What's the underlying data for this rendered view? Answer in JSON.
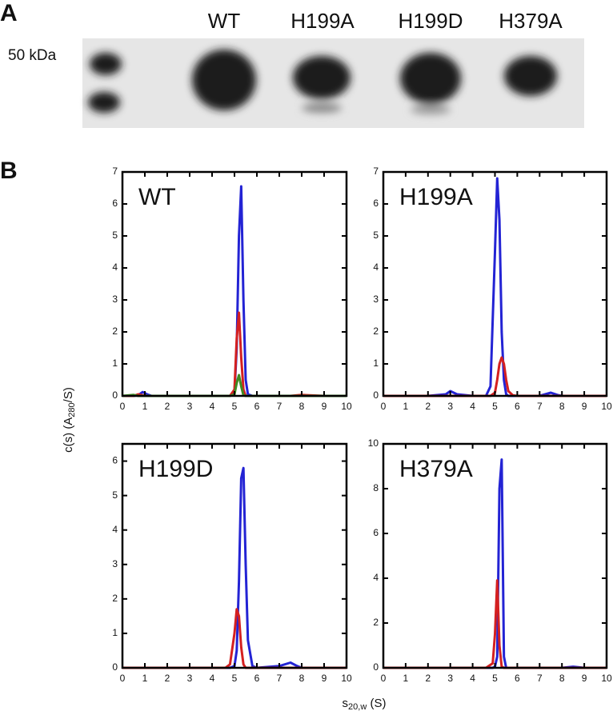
{
  "panels": {
    "a": "A",
    "b": "B"
  },
  "gel": {
    "marker_label": "50 kDa",
    "lanes": [
      "WT",
      "H199A",
      "H199D",
      "H379A"
    ]
  },
  "axis_labels": {
    "y": [
      "c(s)  (A",
      "280",
      "/S)"
    ],
    "x": [
      "s",
      "20,w",
      " (S)"
    ]
  },
  "chart_data": [
    {
      "type": "line",
      "title": "WT",
      "x": [
        0,
        0.5,
        0.7,
        0.9,
        1.1,
        1.3,
        2,
        3,
        4,
        4.6,
        4.8,
        5.0,
        5.1,
        5.2,
        5.3,
        5.4,
        5.5,
        5.6,
        5.8,
        6,
        7,
        7.5,
        8,
        9,
        10
      ],
      "xlim": [
        0,
        10
      ],
      "xticks": [
        0,
        1,
        2,
        3,
        4,
        5,
        6,
        7,
        8,
        9,
        10
      ],
      "ylim": [
        0,
        7
      ],
      "yticks": [
        0,
        1,
        2,
        3,
        4,
        5,
        6,
        7
      ],
      "series": [
        {
          "color": "#2323d4",
          "values": [
            0,
            0,
            0.02,
            0.12,
            0.05,
            0,
            0,
            0,
            0,
            0,
            0,
            0.1,
            1.5,
            5.0,
            6.55,
            3.0,
            0.5,
            0.05,
            0,
            0,
            0,
            0,
            0,
            0,
            0
          ]
        },
        {
          "color": "#d42020",
          "values": [
            0,
            0,
            0.05,
            0.02,
            0,
            0,
            0,
            0,
            0,
            0,
            0,
            0.2,
            1.8,
            2.6,
            1.2,
            0.2,
            0,
            0,
            0,
            0,
            0,
            0,
            0.03,
            0,
            0
          ]
        },
        {
          "color": "#3f8a22",
          "values": [
            0,
            0.03,
            0,
            0,
            0,
            0,
            0,
            0,
            0,
            0,
            0,
            0.05,
            0.4,
            0.65,
            0.3,
            0.02,
            0,
            0,
            0,
            0,
            0,
            0,
            0,
            0,
            0
          ]
        }
      ]
    },
    {
      "type": "line",
      "title": "H199A",
      "x": [
        0,
        1,
        2,
        2.8,
        3.0,
        3.3,
        4,
        4.6,
        4.8,
        5.0,
        5.1,
        5.2,
        5.3,
        5.4,
        5.5,
        5.6,
        5.8,
        6,
        7,
        7.5,
        7.8,
        8,
        9,
        10
      ],
      "xlim": [
        0,
        10
      ],
      "xticks": [
        0,
        1,
        2,
        3,
        4,
        5,
        6,
        7,
        8,
        9,
        10
      ],
      "ylim": [
        0,
        7
      ],
      "yticks": [
        0,
        1,
        2,
        3,
        4,
        5,
        6,
        7
      ],
      "series": [
        {
          "color": "#2323d4",
          "values": [
            0,
            0,
            0,
            0.05,
            0.15,
            0.05,
            0,
            0,
            0.3,
            4.5,
            6.8,
            5.5,
            2.0,
            0.5,
            0.05,
            0,
            0,
            0,
            0,
            0.1,
            0.03,
            0,
            0,
            0
          ]
        },
        {
          "color": "#d42020",
          "values": [
            0,
            0,
            0,
            0,
            0,
            0,
            0,
            0,
            0,
            0.1,
            0.5,
            1.0,
            1.2,
            1.0,
            0.5,
            0.15,
            0.02,
            0,
            0,
            0,
            0,
            0,
            0,
            0
          ]
        }
      ]
    },
    {
      "type": "line",
      "title": "H199D",
      "x": [
        0,
        1,
        2,
        3,
        4,
        4.6,
        4.8,
        5.0,
        5.1,
        5.2,
        5.3,
        5.4,
        5.5,
        5.6,
        5.8,
        6,
        7,
        7.5,
        7.8,
        8,
        9,
        10
      ],
      "xlim": [
        0,
        10
      ],
      "xticks": [
        0,
        1,
        2,
        3,
        4,
        5,
        6,
        7,
        8,
        9,
        10
      ],
      "ylim": [
        0,
        6.5
      ],
      "yticks": [
        0,
        1,
        2,
        3,
        4,
        5,
        6
      ],
      "series": [
        {
          "color": "#2323d4",
          "values": [
            0,
            0,
            0,
            0,
            0,
            0,
            0,
            0.05,
            0.5,
            2.5,
            5.5,
            5.8,
            3.0,
            0.8,
            0.05,
            0,
            0.05,
            0.15,
            0.05,
            0,
            0,
            0
          ]
        },
        {
          "color": "#d42020",
          "values": [
            0,
            0,
            0,
            0,
            0,
            0,
            0.1,
            1.0,
            1.7,
            1.5,
            0.6,
            0.1,
            0,
            0,
            0,
            0,
            0,
            0,
            0,
            0,
            0,
            0
          ]
        }
      ]
    },
    {
      "type": "line",
      "title": "H379A",
      "x": [
        0,
        1,
        2,
        3,
        4,
        4.6,
        4.9,
        5.0,
        5.1,
        5.2,
        5.3,
        5.4,
        5.5,
        6,
        7,
        8,
        8.5,
        9,
        10
      ],
      "xlim": [
        0,
        10
      ],
      "xticks": [
        0,
        1,
        2,
        3,
        4,
        5,
        6,
        7,
        8,
        9,
        10
      ],
      "ylim": [
        0,
        10
      ],
      "yticks": [
        0,
        2,
        4,
        6,
        8,
        10
      ],
      "series": [
        {
          "color": "#2323d4",
          "values": [
            0,
            0,
            0,
            0,
            0,
            0,
            0,
            0.05,
            0.5,
            8.0,
            9.3,
            0.5,
            0,
            0,
            0,
            0,
            0.05,
            0,
            0
          ]
        },
        {
          "color": "#d42020",
          "values": [
            0,
            0,
            0,
            0,
            0,
            0,
            0.2,
            1.5,
            3.9,
            1.0,
            0.05,
            0,
            0,
            0,
            0,
            0,
            0,
            0,
            0
          ]
        }
      ]
    }
  ]
}
